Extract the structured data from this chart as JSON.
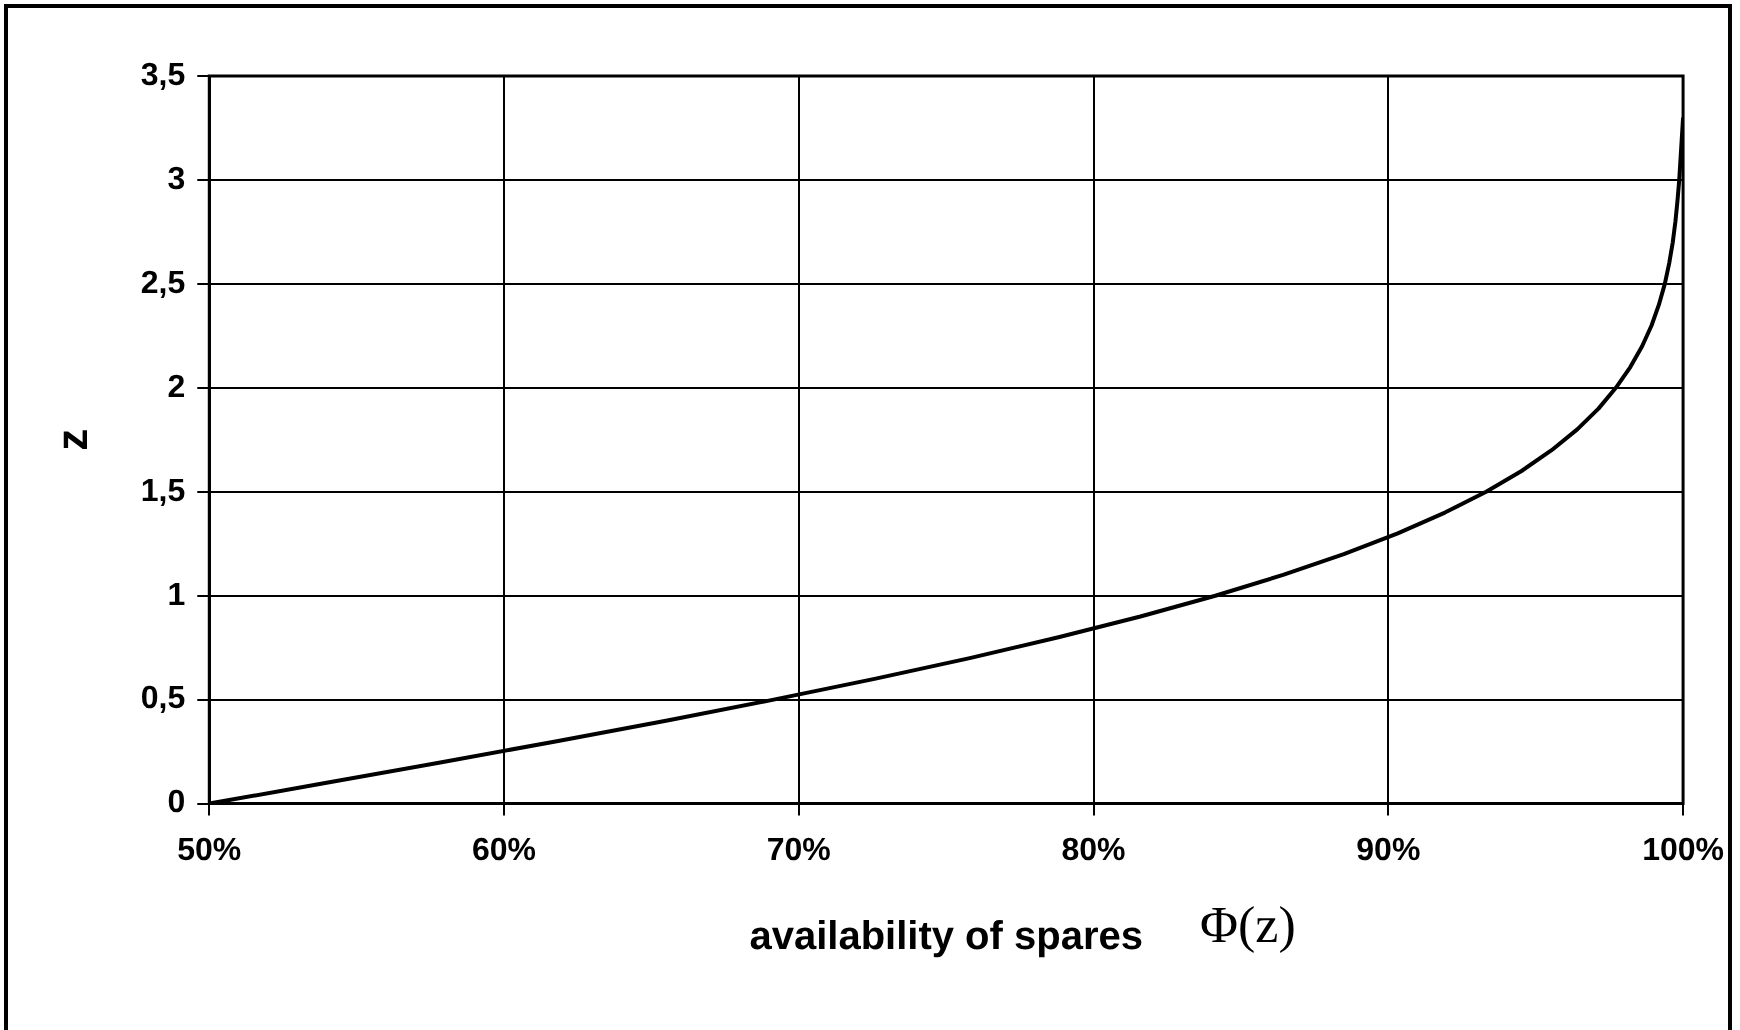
{
  "chart_data": {
    "type": "line",
    "xlabel": "availability of spares",
    "ylabel": "z",
    "annotations": [
      "Φ(z)"
    ],
    "series": [
      {
        "color": "#000000",
        "x": [
          50,
          53.98,
          57.93,
          61.79,
          65.54,
          69.15,
          72.57,
          75.8,
          78.81,
          81.59,
          84.13,
          86.43,
          88.49,
          90.32,
          91.92,
          93.32,
          94.52,
          95.54,
          96.41,
          97.13,
          97.72,
          98.21,
          98.61,
          98.93,
          99.18,
          99.38,
          99.53,
          99.65,
          99.74,
          99.81,
          99.87,
          100
        ],
        "values": [
          0,
          0.1,
          0.2,
          0.3,
          0.4,
          0.5,
          0.6,
          0.7,
          0.8,
          0.9,
          1.0,
          1.1,
          1.2,
          1.3,
          1.4,
          1.5,
          1.6,
          1.7,
          1.8,
          1.9,
          2.0,
          2.1,
          2.2,
          2.3,
          2.4,
          2.5,
          2.6,
          2.7,
          2.8,
          2.9,
          3.0,
          3.3
        ]
      }
    ],
    "xlim": [
      50,
      100
    ],
    "xticks": [
      {
        "value": 50,
        "label": "50%"
      },
      {
        "value": 60,
        "label": "60%"
      },
      {
        "value": 70,
        "label": "70%"
      },
      {
        "value": 80,
        "label": "80%"
      },
      {
        "value": 90,
        "label": "90%"
      },
      {
        "value": 100,
        "label": "100%"
      }
    ],
    "ylim": [
      0,
      3.5
    ],
    "yticks": [
      0,
      {
        "value": 0.5,
        "label": "0,5"
      },
      1,
      {
        "value": 1.5,
        "label": "1,5"
      },
      2,
      {
        "value": 2.5,
        "label": "2,5"
      },
      3,
      {
        "value": 3.5,
        "label": "3,5"
      }
    ],
    "grid": true,
    "legend": false,
    "marker": "none",
    "line_style": "solid"
  }
}
